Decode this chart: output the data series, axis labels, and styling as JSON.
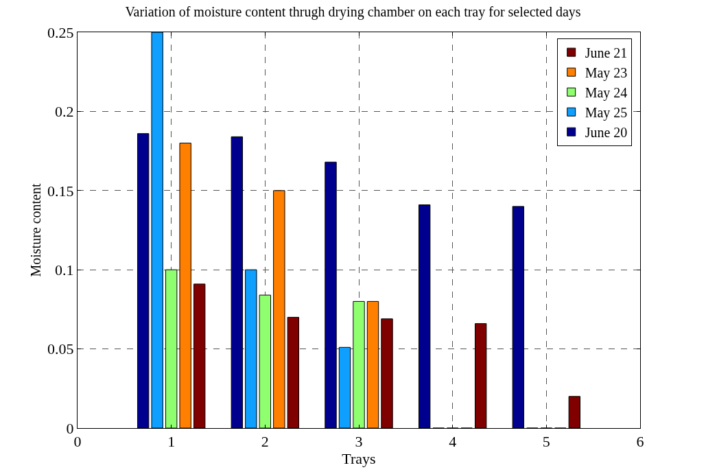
{
  "chart_data": {
    "type": "bar",
    "title": "Variation of moisture content thrugh drying chamber on each tray for selected days",
    "xlabel": "Trays",
    "ylabel": "Moisture content",
    "x": [
      1,
      2,
      3,
      4,
      5
    ],
    "series": [
      {
        "name": "June 20",
        "color": "#00008f",
        "values": [
          0.186,
          0.184,
          0.168,
          0.141,
          0.14
        ]
      },
      {
        "name": "May 25",
        "color": "#0f9fff",
        "values": [
          0.25,
          0.1,
          0.051,
          0,
          0
        ]
      },
      {
        "name": "May 24",
        "color": "#8fff6f",
        "values": [
          0.1,
          0.084,
          0.08,
          0,
          0
        ]
      },
      {
        "name": "May 23",
        "color": "#ff7f00",
        "values": [
          0.18,
          0.15,
          0.08,
          0,
          0
        ]
      },
      {
        "name": "June 21",
        "color": "#800000",
        "values": [
          0.091,
          0.07,
          0.069,
          0.066,
          0.02
        ]
      }
    ],
    "xlim": [
      0,
      6
    ],
    "ylim": [
      0,
      0.25
    ],
    "xticks": [
      0,
      1,
      2,
      3,
      4,
      5,
      6
    ],
    "yticks": [
      0,
      0.05,
      0.1,
      0.15,
      0.2,
      0.25
    ],
    "grid": true,
    "legend": "top right"
  }
}
